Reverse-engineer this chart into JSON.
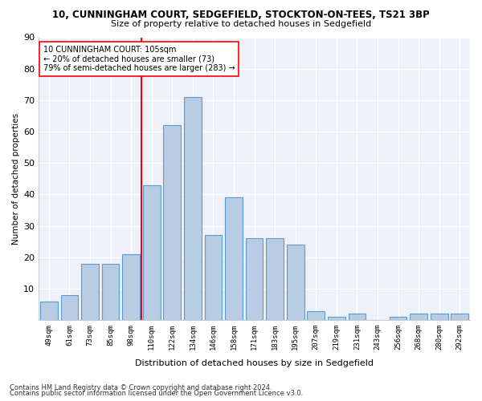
{
  "title1": "10, CUNNINGHAM COURT, SEDGEFIELD, STOCKTON-ON-TEES, TS21 3BP",
  "title2": "Size of property relative to detached houses in Sedgefield",
  "xlabel": "Distribution of detached houses by size in Sedgefield",
  "ylabel": "Number of detached properties",
  "categories": [
    "49sqm",
    "61sqm",
    "73sqm",
    "85sqm",
    "98sqm",
    "110sqm",
    "122sqm",
    "134sqm",
    "146sqm",
    "158sqm",
    "171sqm",
    "183sqm",
    "195sqm",
    "207sqm",
    "219sqm",
    "231sqm",
    "243sqm",
    "256sqm",
    "268sqm",
    "280sqm",
    "292sqm"
  ],
  "values": [
    6,
    8,
    18,
    18,
    21,
    43,
    62,
    71,
    27,
    39,
    26,
    26,
    24,
    3,
    1,
    2,
    0,
    1,
    2,
    2,
    2
  ],
  "bar_color": "#b8cce4",
  "bar_edge_color": "#5b9bd5",
  "vline_x_index": 5,
  "vline_color": "red",
  "annotation_line1": "10 CUNNINGHAM COURT: 105sqm",
  "annotation_line2": "← 20% of detached houses are smaller (73)",
  "annotation_line3": "79% of semi-detached houses are larger (283) →",
  "annotation_box_color": "white",
  "annotation_box_edge": "red",
  "footer1": "Contains HM Land Registry data © Crown copyright and database right 2024.",
  "footer2": "Contains public sector information licensed under the Open Government Licence v3.0.",
  "bg_color": "#eef2f8",
  "ylim": [
    0,
    90
  ],
  "yticks": [
    0,
    10,
    20,
    30,
    40,
    50,
    60,
    70,
    80,
    90
  ]
}
